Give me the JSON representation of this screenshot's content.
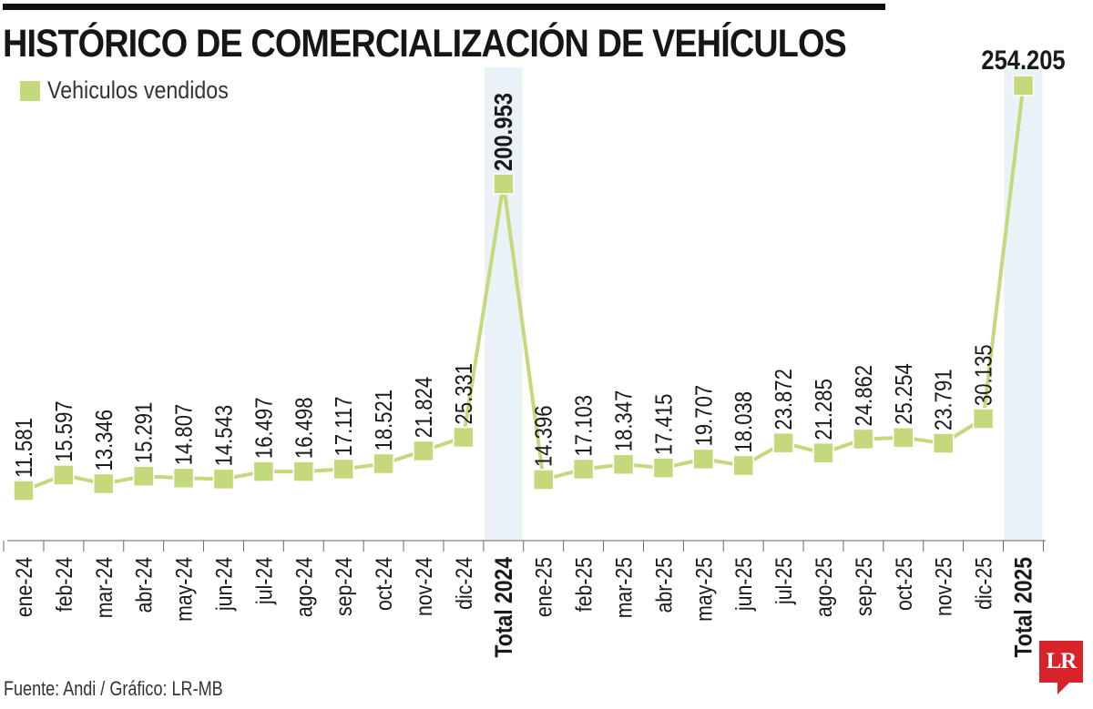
{
  "header": {
    "title": "HISTÓRICO DE COMERCIALIZACIÓN DE VEHÍCULOS"
  },
  "legend": {
    "label": "Vehiculos vendidos",
    "color": "#c3d97c"
  },
  "footer": {
    "source": "Fuente: Andi / Gráfico: LR-MB",
    "logo_text": "LR",
    "logo_color": "#d8232a"
  },
  "colors": {
    "line": "#c3d97c",
    "highlight_band": "#e9f2f6",
    "axis": "#666666"
  },
  "chart_data": {
    "type": "line",
    "title": "HISTÓRICO DE COMERCIALIZACIÓN DE VEHÍCULOS",
    "xlabel": "",
    "ylabel": "",
    "grid": false,
    "legend_position": "top-left",
    "categories": [
      "ene-24",
      "feb-24",
      "mar-24",
      "abr-24",
      "may-24",
      "jun-24",
      "jul-24",
      "ago-24",
      "sep-24",
      "oct-24",
      "nov-24",
      "dic-24",
      "Total 2024",
      "ene-25",
      "feb-25",
      "mar-25",
      "abr-25",
      "may-25",
      "jun-25",
      "jul-25",
      "ago-25",
      "sep-25",
      "oct-25",
      "nov-25",
      "dic-25",
      "Total 2025"
    ],
    "highlighted_categories": [
      "Total 2024",
      "Total 2025"
    ],
    "series": [
      {
        "name": "Vehiculos vendidos",
        "values": [
          11581,
          15597,
          13346,
          15291,
          14807,
          14543,
          16497,
          16498,
          17117,
          18521,
          21824,
          25331,
          200953,
          14396,
          17103,
          18347,
          17415,
          19707,
          18038,
          23872,
          21285,
          24862,
          25254,
          23791,
          30135,
          254205
        ],
        "labels": [
          "11.581",
          "15.597",
          "13.346",
          "15.291",
          "14.807",
          "14.543",
          "16.497",
          "16.498",
          "17.117",
          "18.521",
          "21.824",
          "25.331",
          "200.953",
          "14.396",
          "17.103",
          "18.347",
          "17.415",
          "19.707",
          "18.038",
          "23.872",
          "21.285",
          "24.862",
          "25.254",
          "23.791",
          "30.135",
          "254.205"
        ]
      }
    ]
  }
}
